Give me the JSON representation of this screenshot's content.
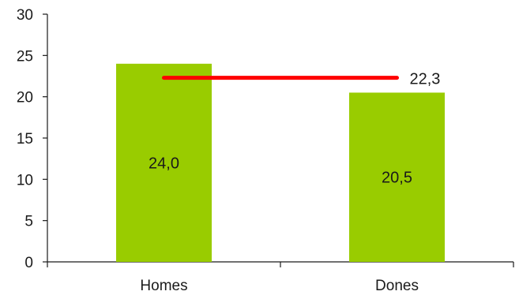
{
  "chart_data": {
    "type": "bar",
    "categories": [
      "Homes",
      "Dones"
    ],
    "values": [
      24.0,
      20.5
    ],
    "value_labels": [
      "24,0",
      "20,5"
    ],
    "bar_color": "#99cc00",
    "reference_line": {
      "value": 22.3,
      "label": "22,3",
      "color": "#ff0000"
    },
    "ylim": [
      0,
      30
    ],
    "yticks": [
      0,
      5,
      10,
      15,
      20,
      25,
      30
    ],
    "title": "",
    "xlabel": "",
    "ylabel": "",
    "grid": false,
    "legend": "none"
  }
}
